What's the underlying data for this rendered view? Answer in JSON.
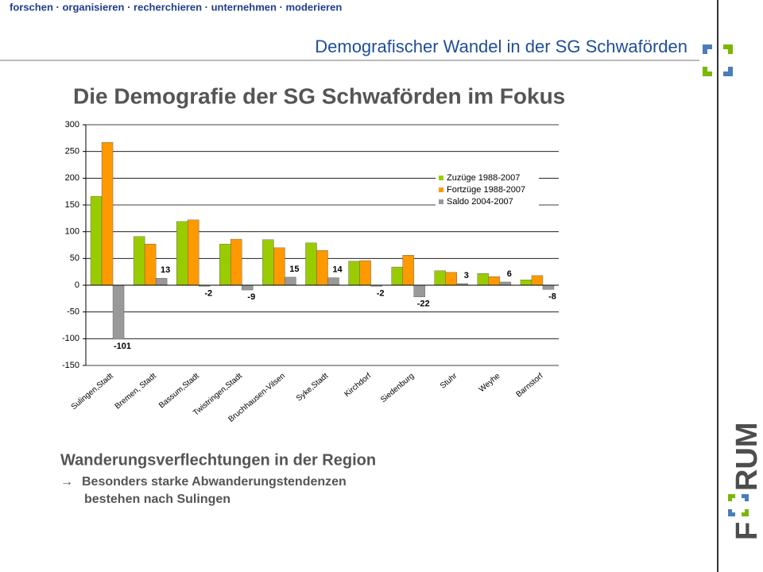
{
  "tagline": "forschen · organisieren · recherchieren · unternehmen · moderieren",
  "subtitle": "Demografischer Wandel in der SG Schwaförden",
  "logo": {
    "left": "F",
    "right": "RUM"
  },
  "chart_data": {
    "type": "bar",
    "title": "Die Demografie der SG Schwaförden im Fokus",
    "categories": [
      "Sulingen,Stadt",
      "Bremen, Stadt",
      "Bassum,Stadt",
      "Twistringen,Stadt",
      "Bruchhausen-Vilsen",
      "Syke,Stadt",
      "Kirchdorf",
      "Siedenburg",
      "Stuhr",
      "Weyhe",
      "Barnstorf"
    ],
    "series": [
      {
        "name": "Zuzüge 1988-2007",
        "color": "#99cc00",
        "values": [
          166,
          91,
          119,
          77,
          85,
          79,
          45,
          34,
          27,
          22,
          10
        ]
      },
      {
        "name": "Fortzüge 1988-2007",
        "color": "#ff9900",
        "values": [
          267,
          77,
          122,
          86,
          70,
          65,
          46,
          56,
          24,
          16,
          18
        ]
      },
      {
        "name": "Saldo 2004-2007",
        "color": "#999999",
        "values": [
          -101,
          13,
          -2,
          -9,
          15,
          14,
          -2,
          -22,
          3,
          6,
          -8
        ],
        "labels": true
      }
    ],
    "ylim": [
      -150,
      300
    ],
    "yticks": [
      -150,
      -100,
      -50,
      0,
      50,
      100,
      150,
      200,
      250,
      300
    ],
    "grid": true,
    "legend": "right"
  },
  "caption": {
    "heading": "Wanderungsverflechtungen in der Region",
    "lines": [
      "Besonders starke Abwanderungstendenzen",
      "bestehen nach Sulingen"
    ]
  }
}
